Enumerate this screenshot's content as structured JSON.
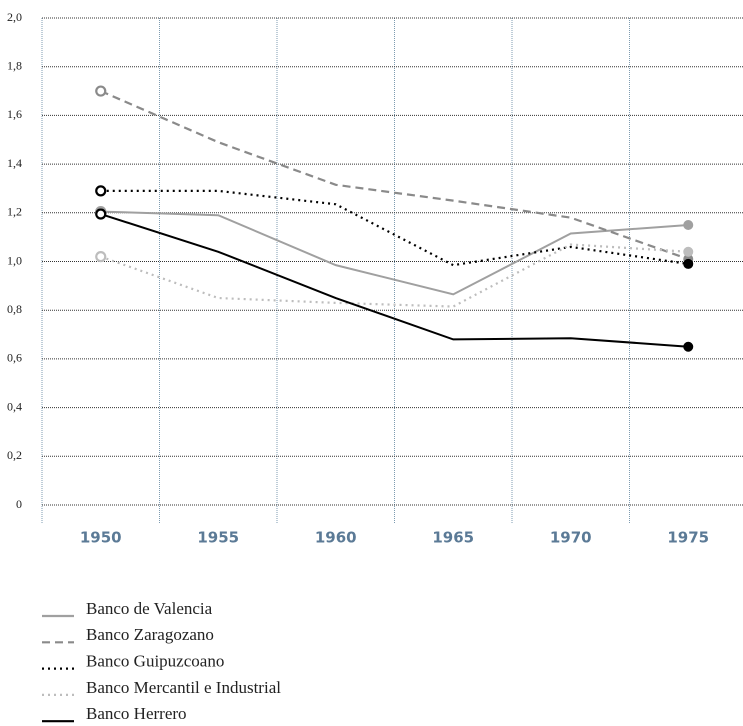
{
  "chart_data": {
    "type": "line",
    "categories": [
      "1950",
      "1955",
      "1960",
      "1965",
      "1970",
      "1975"
    ],
    "ylim": [
      0,
      2.0
    ],
    "yticks": [
      0,
      {
        "value": 0.2,
        "label": "0,2"
      },
      {
        "value": 0.4,
        "label": "0,4"
      },
      {
        "value": 0.6,
        "label": "0,6"
      },
      {
        "value": 0.8,
        "label": "0,8"
      },
      {
        "value": 1.0,
        "label": "1,0"
      },
      {
        "value": 1.2,
        "label": "1,2"
      },
      {
        "value": 1.4,
        "label": "1,4"
      },
      {
        "value": 1.6,
        "label": "1,6"
      },
      {
        "value": 1.8,
        "label": "1,8"
      },
      {
        "value": 2.0,
        "label": "2,0"
      }
    ],
    "grid": true,
    "legend": "bottom",
    "series": [
      {
        "name": "Banco de Valencia",
        "color": "#a0a0a0",
        "dash": "solid",
        "values": [
          1.205,
          1.19,
          0.985,
          0.865,
          1.115,
          1.15
        ]
      },
      {
        "name": "Banco Zaragozano",
        "color": "#8a8a8a",
        "dash": "dashed",
        "values": [
          1.7,
          1.49,
          1.315,
          1.25,
          1.18,
          1.01
        ]
      },
      {
        "name": "Banco Guipuzcoano",
        "color": "#000000",
        "dash": "dotted",
        "values": [
          1.29,
          1.29,
          1.235,
          0.985,
          1.06,
          0.99
        ]
      },
      {
        "name": "Banco Mercantil e Industrial",
        "color": "#bdbdbd",
        "dash": "dotted",
        "values": [
          1.02,
          0.85,
          0.83,
          0.815,
          1.07,
          1.04
        ]
      },
      {
        "name": "Banco Herrero",
        "color": "#000000",
        "dash": "solid",
        "values": [
          1.195,
          1.04,
          0.85,
          0.68,
          0.685,
          0.65
        ]
      }
    ]
  }
}
